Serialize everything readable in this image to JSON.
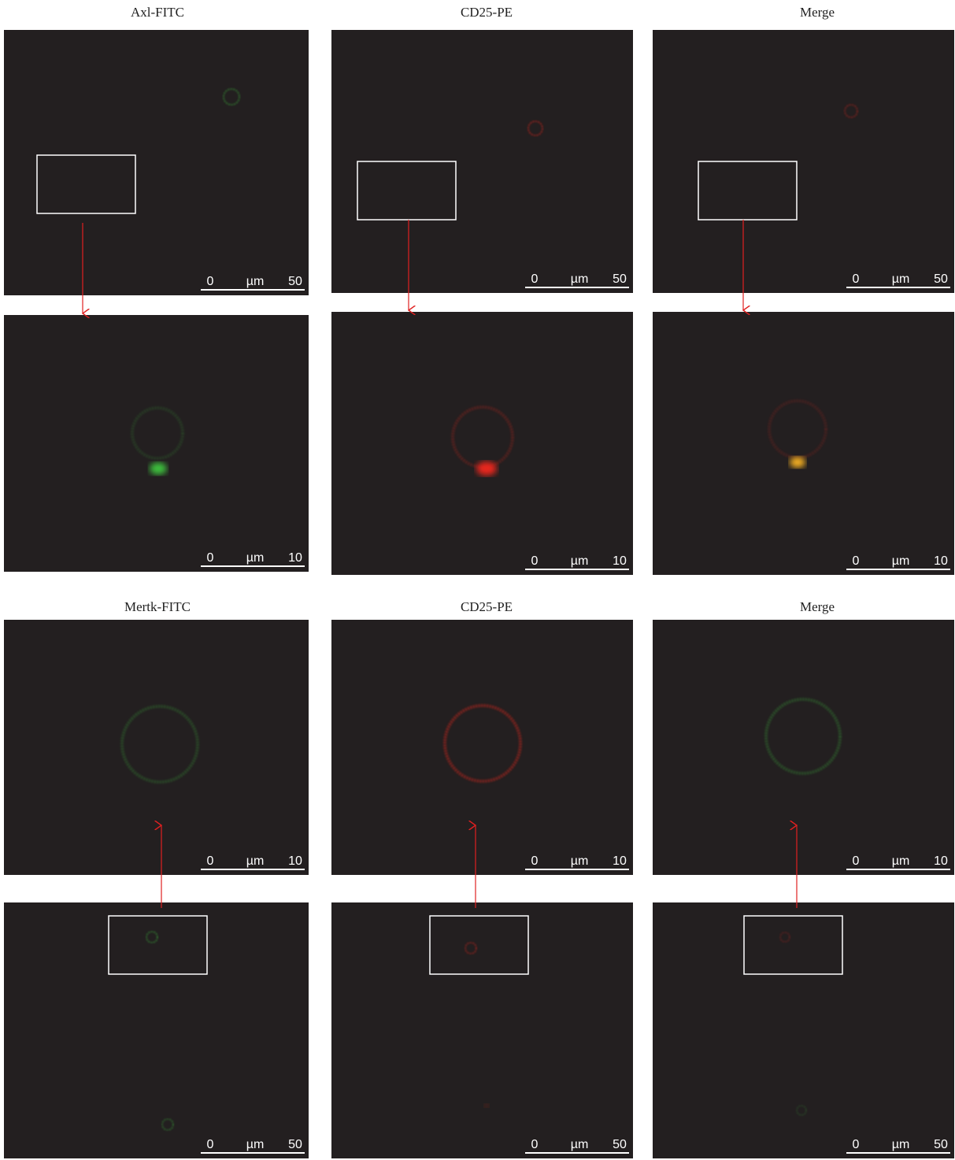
{
  "sections": [
    {
      "column_titles": [
        "Axl-FITC",
        "CD25-PE",
        "Merge"
      ],
      "panels": [
        {
          "scale_bar": {
            "start": "0",
            "unit": "µm",
            "end": "50"
          }
        },
        {
          "scale_bar": {
            "start": "0",
            "unit": "µm",
            "end": "50"
          }
        },
        {
          "scale_bar": {
            "start": "0",
            "unit": "µm",
            "end": "50"
          }
        },
        {
          "scale_bar": {
            "start": "0",
            "unit": "µm",
            "end": "10"
          }
        },
        {
          "scale_bar": {
            "start": "0",
            "unit": "µm",
            "end": "10"
          }
        },
        {
          "scale_bar": {
            "start": "0",
            "unit": "µm",
            "end": "10"
          }
        }
      ]
    },
    {
      "column_titles": [
        "Mertk-FITC",
        "CD25-PE",
        "Merge"
      ],
      "panels": [
        {
          "scale_bar": {
            "start": "0",
            "unit": "µm",
            "end": "10"
          }
        },
        {
          "scale_bar": {
            "start": "0",
            "unit": "µm",
            "end": "10"
          }
        },
        {
          "scale_bar": {
            "start": "0",
            "unit": "µm",
            "end": "10"
          }
        },
        {
          "scale_bar": {
            "start": "0",
            "unit": "µm",
            "end": "50"
          }
        },
        {
          "scale_bar": {
            "start": "0",
            "unit": "µm",
            "end": "50"
          }
        },
        {
          "scale_bar": {
            "start": "0",
            "unit": "µm",
            "end": "50"
          }
        }
      ]
    }
  ]
}
